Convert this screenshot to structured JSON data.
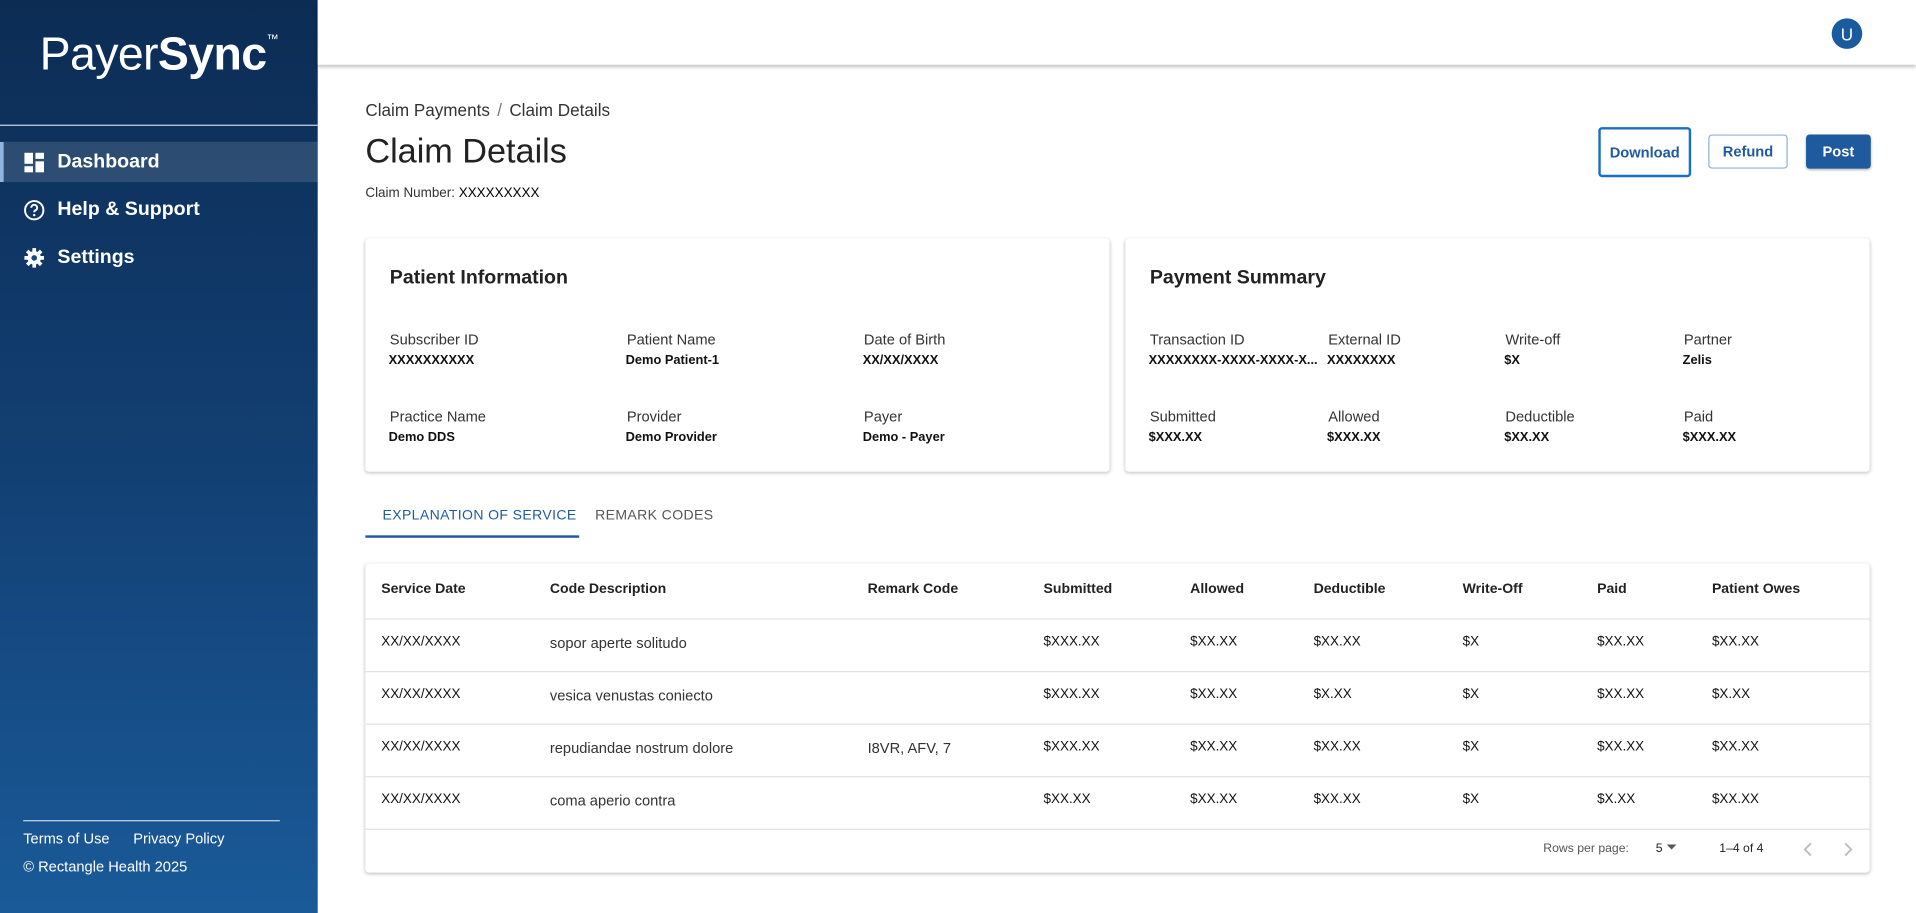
{
  "brand": {
    "name_a": "Payer",
    "name_b": "Sync",
    "tm": "™"
  },
  "sidebar": {
    "nav": [
      "Dashboard",
      "Help & Support",
      "Settings"
    ],
    "footer_links": [
      "Terms of Use",
      "Privacy Policy"
    ],
    "copyright": "© Rectangle Health 2025"
  },
  "header": {
    "avatar": "U"
  },
  "breadcrumb": [
    "Claim Payments",
    "Claim Details"
  ],
  "breadcrumb_separator": "/",
  "title": "Claim Details",
  "claim_number": {
    "label": "Claim Number:",
    "value": "XXXXXXXXX"
  },
  "actions": [
    "Download",
    "Refund",
    "Post"
  ],
  "patient_information": {
    "title": "Patient Information",
    "fields": [
      {
        "label": "Subscriber ID",
        "value": "XXXXXXXXXX"
      },
      {
        "label": "Patient Name",
        "value": "Demo Patient-1"
      },
      {
        "label": "Date of Birth",
        "value": "XX/XX/XXXX"
      },
      {
        "label": "Practice Name",
        "value": "Demo DDS"
      },
      {
        "label": "Provider",
        "value": "Demo Provider"
      },
      {
        "label": "Payer",
        "value": "Demo - Payer"
      }
    ]
  },
  "payment_summary": {
    "title": "Payment Summary",
    "fields": [
      {
        "label": "Transaction ID",
        "value": "XXXXXXXX-XXXX-XXXX-X..."
      },
      {
        "label": "External ID",
        "value": "XXXXXXXX"
      },
      {
        "label": "Write-off",
        "value": "$X"
      },
      {
        "label": "Partner",
        "value": "Zelis"
      },
      {
        "label": "Submitted",
        "value": "$XXX.XX"
      },
      {
        "label": "Allowed",
        "value": "$XXX.XX"
      },
      {
        "label": "Deductible",
        "value": "$XX.XX"
      },
      {
        "label": "Paid",
        "value": "$XXX.XX"
      }
    ]
  },
  "tabs": [
    "EXPLANATION OF SERVICE",
    "REMARK CODES"
  ],
  "table": {
    "columns": [
      "Service Date",
      "Code Description",
      "Remark Code",
      "Submitted",
      "Allowed",
      "Deductible",
      "Write-Off",
      "Paid",
      "Patient Owes"
    ],
    "rows": [
      [
        "XX/XX/XXXX",
        "sopor aperte solitudo",
        null,
        "$XXX.XX",
        "$XX.XX",
        "$XX.XX",
        "$X",
        "$XX.XX",
        "$XX.XX"
      ],
      [
        "XX/XX/XXXX",
        "vesica venustas coniecto",
        null,
        "$XXX.XX",
        "$XX.XX",
        "$X.XX",
        "$X",
        "$XX.XX",
        "$X.XX"
      ],
      [
        "XX/XX/XXXX",
        "repudiandae nostrum dolore",
        "I8VR, AFV, 7",
        "$XXX.XX",
        "$XX.XX",
        "$XX.XX",
        "$X",
        "$XX.XX",
        "$XX.XX"
      ],
      [
        "XX/XX/XXXX",
        "coma aperio contra",
        null,
        "$XX.XX",
        "$XX.XX",
        "$XX.XX",
        "$X",
        "$X.XX",
        "$XX.XX"
      ]
    ]
  },
  "pagination": {
    "rows_per_page_label": "Rows per page:",
    "rows_per_page": "5",
    "range": "1–4 of 4"
  }
}
